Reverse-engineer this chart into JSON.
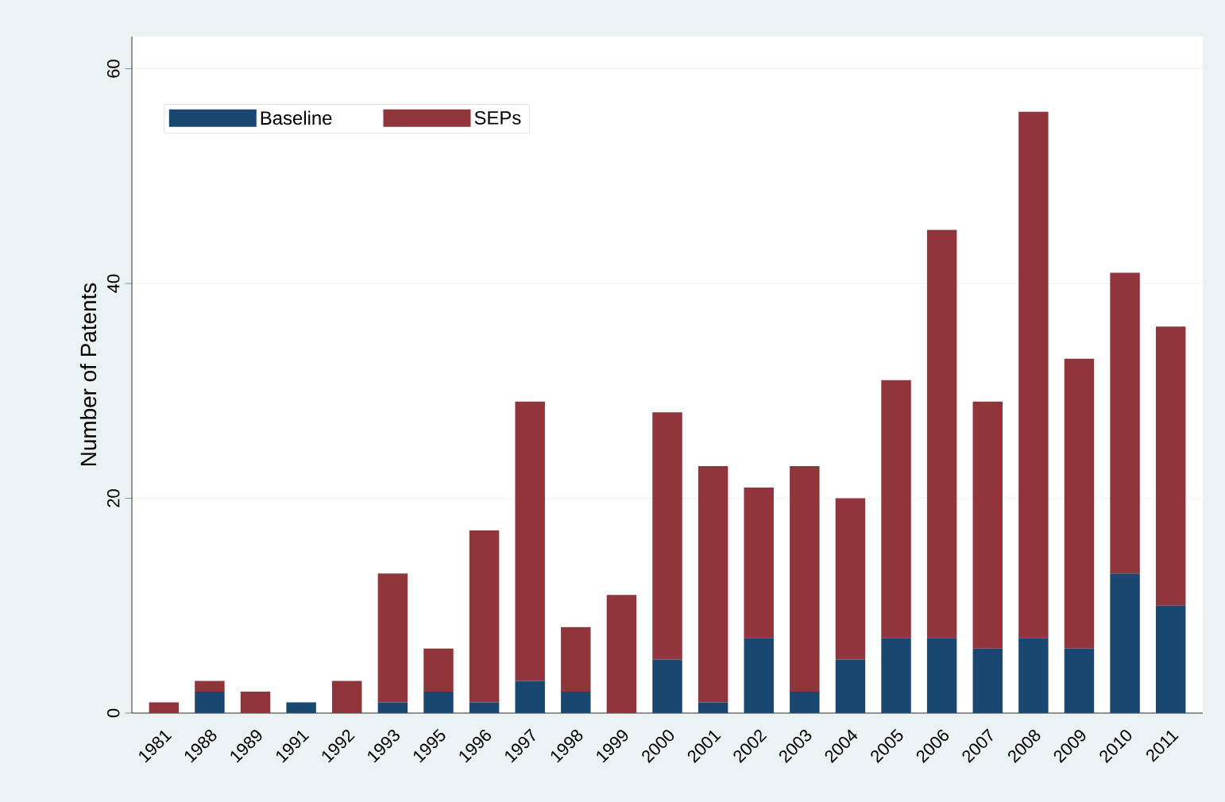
{
  "chart_data": {
    "type": "bar",
    "stacked": true,
    "ylabel": "Number of Patents",
    "categories": [
      "1981",
      "1988",
      "1989",
      "1991",
      "1992",
      "1993",
      "1995",
      "1996",
      "1997",
      "1998",
      "1999",
      "2000",
      "2001",
      "2002",
      "2003",
      "2004",
      "2005",
      "2006",
      "2007",
      "2008",
      "2009",
      "2010",
      "2011"
    ],
    "series": [
      {
        "name": "Baseline",
        "color": "#1a476f",
        "values": [
          0,
          2,
          0,
          1,
          0,
          1,
          2,
          1,
          3,
          2,
          0,
          5,
          1,
          7,
          2,
          5,
          7,
          7,
          6,
          7,
          6,
          13,
          10
        ]
      },
      {
        "name": "SEPs",
        "color": "#90353b",
        "values": [
          1,
          1,
          2,
          0,
          3,
          12,
          4,
          16,
          26,
          6,
          11,
          23,
          22,
          14,
          21,
          15,
          24,
          38,
          23,
          49,
          27,
          28,
          26
        ]
      }
    ],
    "ylim": [
      0,
      63
    ],
    "yticks": [
      0,
      20,
      40,
      60
    ],
    "grid": "y",
    "legend": "top left"
  }
}
